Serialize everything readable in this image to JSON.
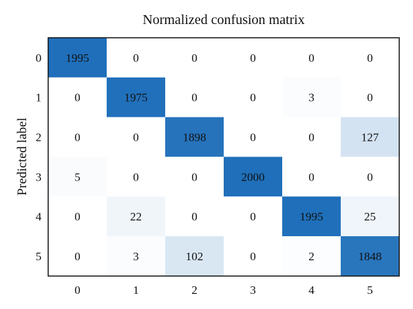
{
  "chart_data": {
    "type": "heatmap",
    "title": "Normalized confusion matrix",
    "ylabel": "Predicted label",
    "xlabel": "",
    "x_categories": [
      "0",
      "1",
      "2",
      "3",
      "4",
      "5"
    ],
    "y_categories": [
      "0",
      "1",
      "2",
      "3",
      "4",
      "5"
    ],
    "values": [
      [
        1995,
        0,
        0,
        0,
        0,
        0
      ],
      [
        0,
        1975,
        0,
        0,
        3,
        0
      ],
      [
        0,
        0,
        1898,
        0,
        0,
        127
      ],
      [
        5,
        0,
        0,
        2000,
        0,
        0
      ],
      [
        0,
        22,
        0,
        0,
        1995,
        25
      ],
      [
        0,
        3,
        102,
        0,
        2,
        1848
      ]
    ],
    "color_scale": {
      "low": "#ffffff",
      "high": "#1f6fba",
      "min": 0,
      "max": 2000
    },
    "grid": false,
    "legend": "none"
  }
}
